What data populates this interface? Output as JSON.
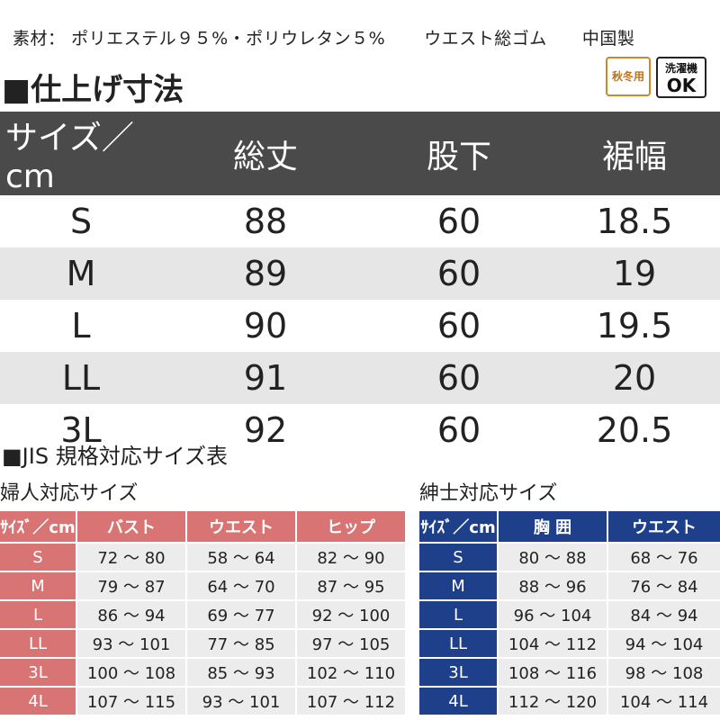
{
  "material": {
    "label": "素材：",
    "composition": "ポリエステル９５%・ポリウレタン５%",
    "waist": "ウエスト総ゴム",
    "origin": "中国製"
  },
  "section_title": "■仕上げ寸法",
  "badges": {
    "season": "秋冬用",
    "wash_top": "洗濯機",
    "wash_bottom": "OK"
  },
  "main_table": {
    "headers": [
      "サイズ／cm",
      "総丈",
      "股下",
      "裾幅"
    ],
    "rows": [
      [
        "S",
        "88",
        "60",
        "18.5"
      ],
      [
        "M",
        "89",
        "60",
        "19"
      ],
      [
        "L",
        "90",
        "60",
        "19.5"
      ],
      [
        "LL",
        "91",
        "60",
        "20"
      ],
      [
        "3L",
        "92",
        "60",
        "20.5"
      ]
    ]
  },
  "jis_title": "■JIS 規格対応サイズ表",
  "women": {
    "title": "婦人対応サイズ",
    "headers": [
      "ｻｲｽﾞ／cm",
      "バスト",
      "ウエスト",
      "ヒップ"
    ],
    "rows": [
      [
        "S",
        "72 ～ 80",
        "58 ～ 64",
        "82 ～ 90"
      ],
      [
        "M",
        "79 ～ 87",
        "64 ～ 70",
        "87 ～ 95"
      ],
      [
        "L",
        "86 ～ 94",
        "69 ～ 77",
        "92 ～ 100"
      ],
      [
        "LL",
        "93 ～ 101",
        "77 ～ 85",
        "97 ～ 105"
      ],
      [
        "3L",
        "100 ～ 108",
        "85 ～ 93",
        "102 ～ 110"
      ],
      [
        "4L",
        "107 ～ 115",
        "93 ～ 101",
        "107 ～ 112"
      ]
    ]
  },
  "men": {
    "title": "紳士対応サイズ",
    "headers": [
      "ｻｲｽﾞ／cm",
      "胸 囲",
      "ウエスト"
    ],
    "rows": [
      [
        "S",
        "80 ～ 88",
        "68 ～ 76"
      ],
      [
        "M",
        "88 ～ 96",
        "76 ～ 84"
      ],
      [
        "L",
        "96 ～ 104",
        "84 ～ 94"
      ],
      [
        "LL",
        "104 ～ 112",
        "94 ～ 104"
      ],
      [
        "3L",
        "108 ～ 116",
        "98 ～ 108"
      ],
      [
        "4L",
        "112 ～ 120",
        "104 ～ 114"
      ]
    ]
  },
  "colors": {
    "header_gray": "#4a4a4a",
    "row_alt": "#e6e6e6",
    "women_accent": "#d97474",
    "men_accent": "#1e3f8a",
    "season_badge": "#c98a2a"
  }
}
